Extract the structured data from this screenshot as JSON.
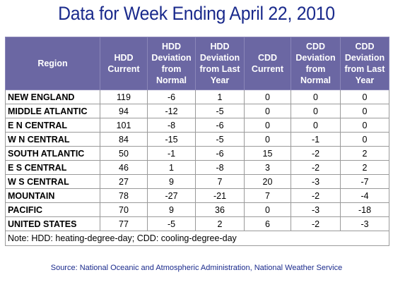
{
  "title": "Data for Week Ending April 22, 2010",
  "table": {
    "headers": [
      "Region",
      "HDD\nCurrent",
      "HDD\nDeviation\nfrom\nNormal",
      "HDD\nDeviation\nfrom Last\nYear",
      "CDD\nCurrent",
      "CDD\nDeviation\nfrom\nNormal",
      "CDD\nDeviation\nfrom Last\nYear"
    ],
    "rows": [
      [
        "NEW ENGLAND",
        "119",
        "-6",
        "1",
        "0",
        "0",
        "0"
      ],
      [
        "MIDDLE ATLANTIC",
        "94",
        "-12",
        "-5",
        "0",
        "0",
        "0"
      ],
      [
        "E N CENTRAL",
        "101",
        "-8",
        "-6",
        "0",
        "0",
        "0"
      ],
      [
        "W N CENTRAL",
        "84",
        "-15",
        "-5",
        "0",
        "-1",
        "0"
      ],
      [
        "SOUTH ATLANTIC",
        "50",
        "-1",
        "-6",
        "15",
        "-2",
        "2"
      ],
      [
        "E S CENTRAL",
        "46",
        "1",
        "-8",
        "3",
        "-2",
        "2"
      ],
      [
        "W S CENTRAL",
        "27",
        "9",
        "7",
        "20",
        "-3",
        "-7"
      ],
      [
        "MOUNTAIN",
        "78",
        "-27",
        "-21",
        "7",
        "-2",
        "-4"
      ],
      [
        "PACIFIC",
        "70",
        "9",
        "36",
        "0",
        "-3",
        "-18"
      ],
      [
        "UNITED STATES",
        "77",
        "-5",
        "2",
        "6",
        "-2",
        "-3"
      ]
    ],
    "note": "Note: HDD: heating-degree-day; CDD: cooling-degree-day"
  },
  "source": "Source:  National Oceanic and Atmospheric Administration, National Weather Service"
}
